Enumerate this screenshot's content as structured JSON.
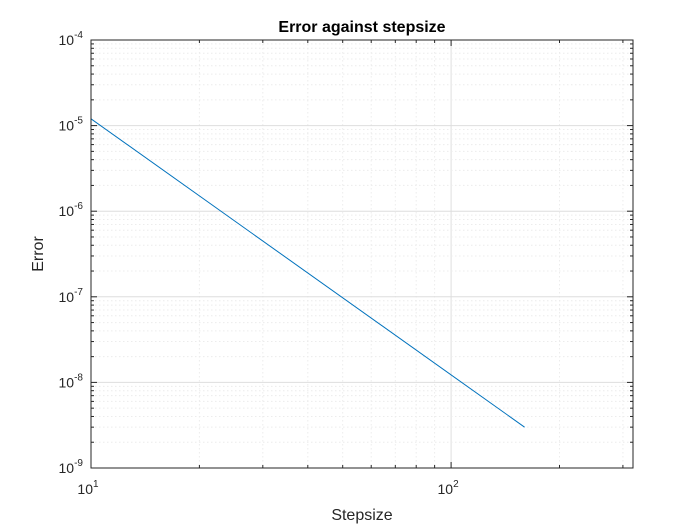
{
  "chart_data": {
    "type": "line",
    "title": "Error against stepsize",
    "xlabel": "Stepsize",
    "ylabel": "Error",
    "xscale": "log",
    "yscale": "log",
    "xlim": [
      10,
      320
    ],
    "ylim": [
      1e-09,
      0.0001
    ],
    "grid": true,
    "minor_grid": true,
    "x_ticks": [
      {
        "value": 10,
        "mantissa": "10",
        "exponent": "1"
      },
      {
        "value": 100,
        "mantissa": "10",
        "exponent": "2"
      }
    ],
    "y_ticks": [
      {
        "value": 1e-09,
        "mantissa": "10",
        "exponent": "-9"
      },
      {
        "value": 1e-08,
        "mantissa": "10",
        "exponent": "-8"
      },
      {
        "value": 1e-07,
        "mantissa": "10",
        "exponent": "-7"
      },
      {
        "value": 1e-06,
        "mantissa": "10",
        "exponent": "-6"
      },
      {
        "value": 1e-05,
        "mantissa": "10",
        "exponent": "-5"
      },
      {
        "value": 0.0001,
        "mantissa": "10",
        "exponent": "-4"
      }
    ],
    "series": [
      {
        "color": "#0072BD",
        "x": [
          10,
          160
        ],
        "y": [
          1.2e-05,
          3e-09
        ]
      }
    ]
  }
}
